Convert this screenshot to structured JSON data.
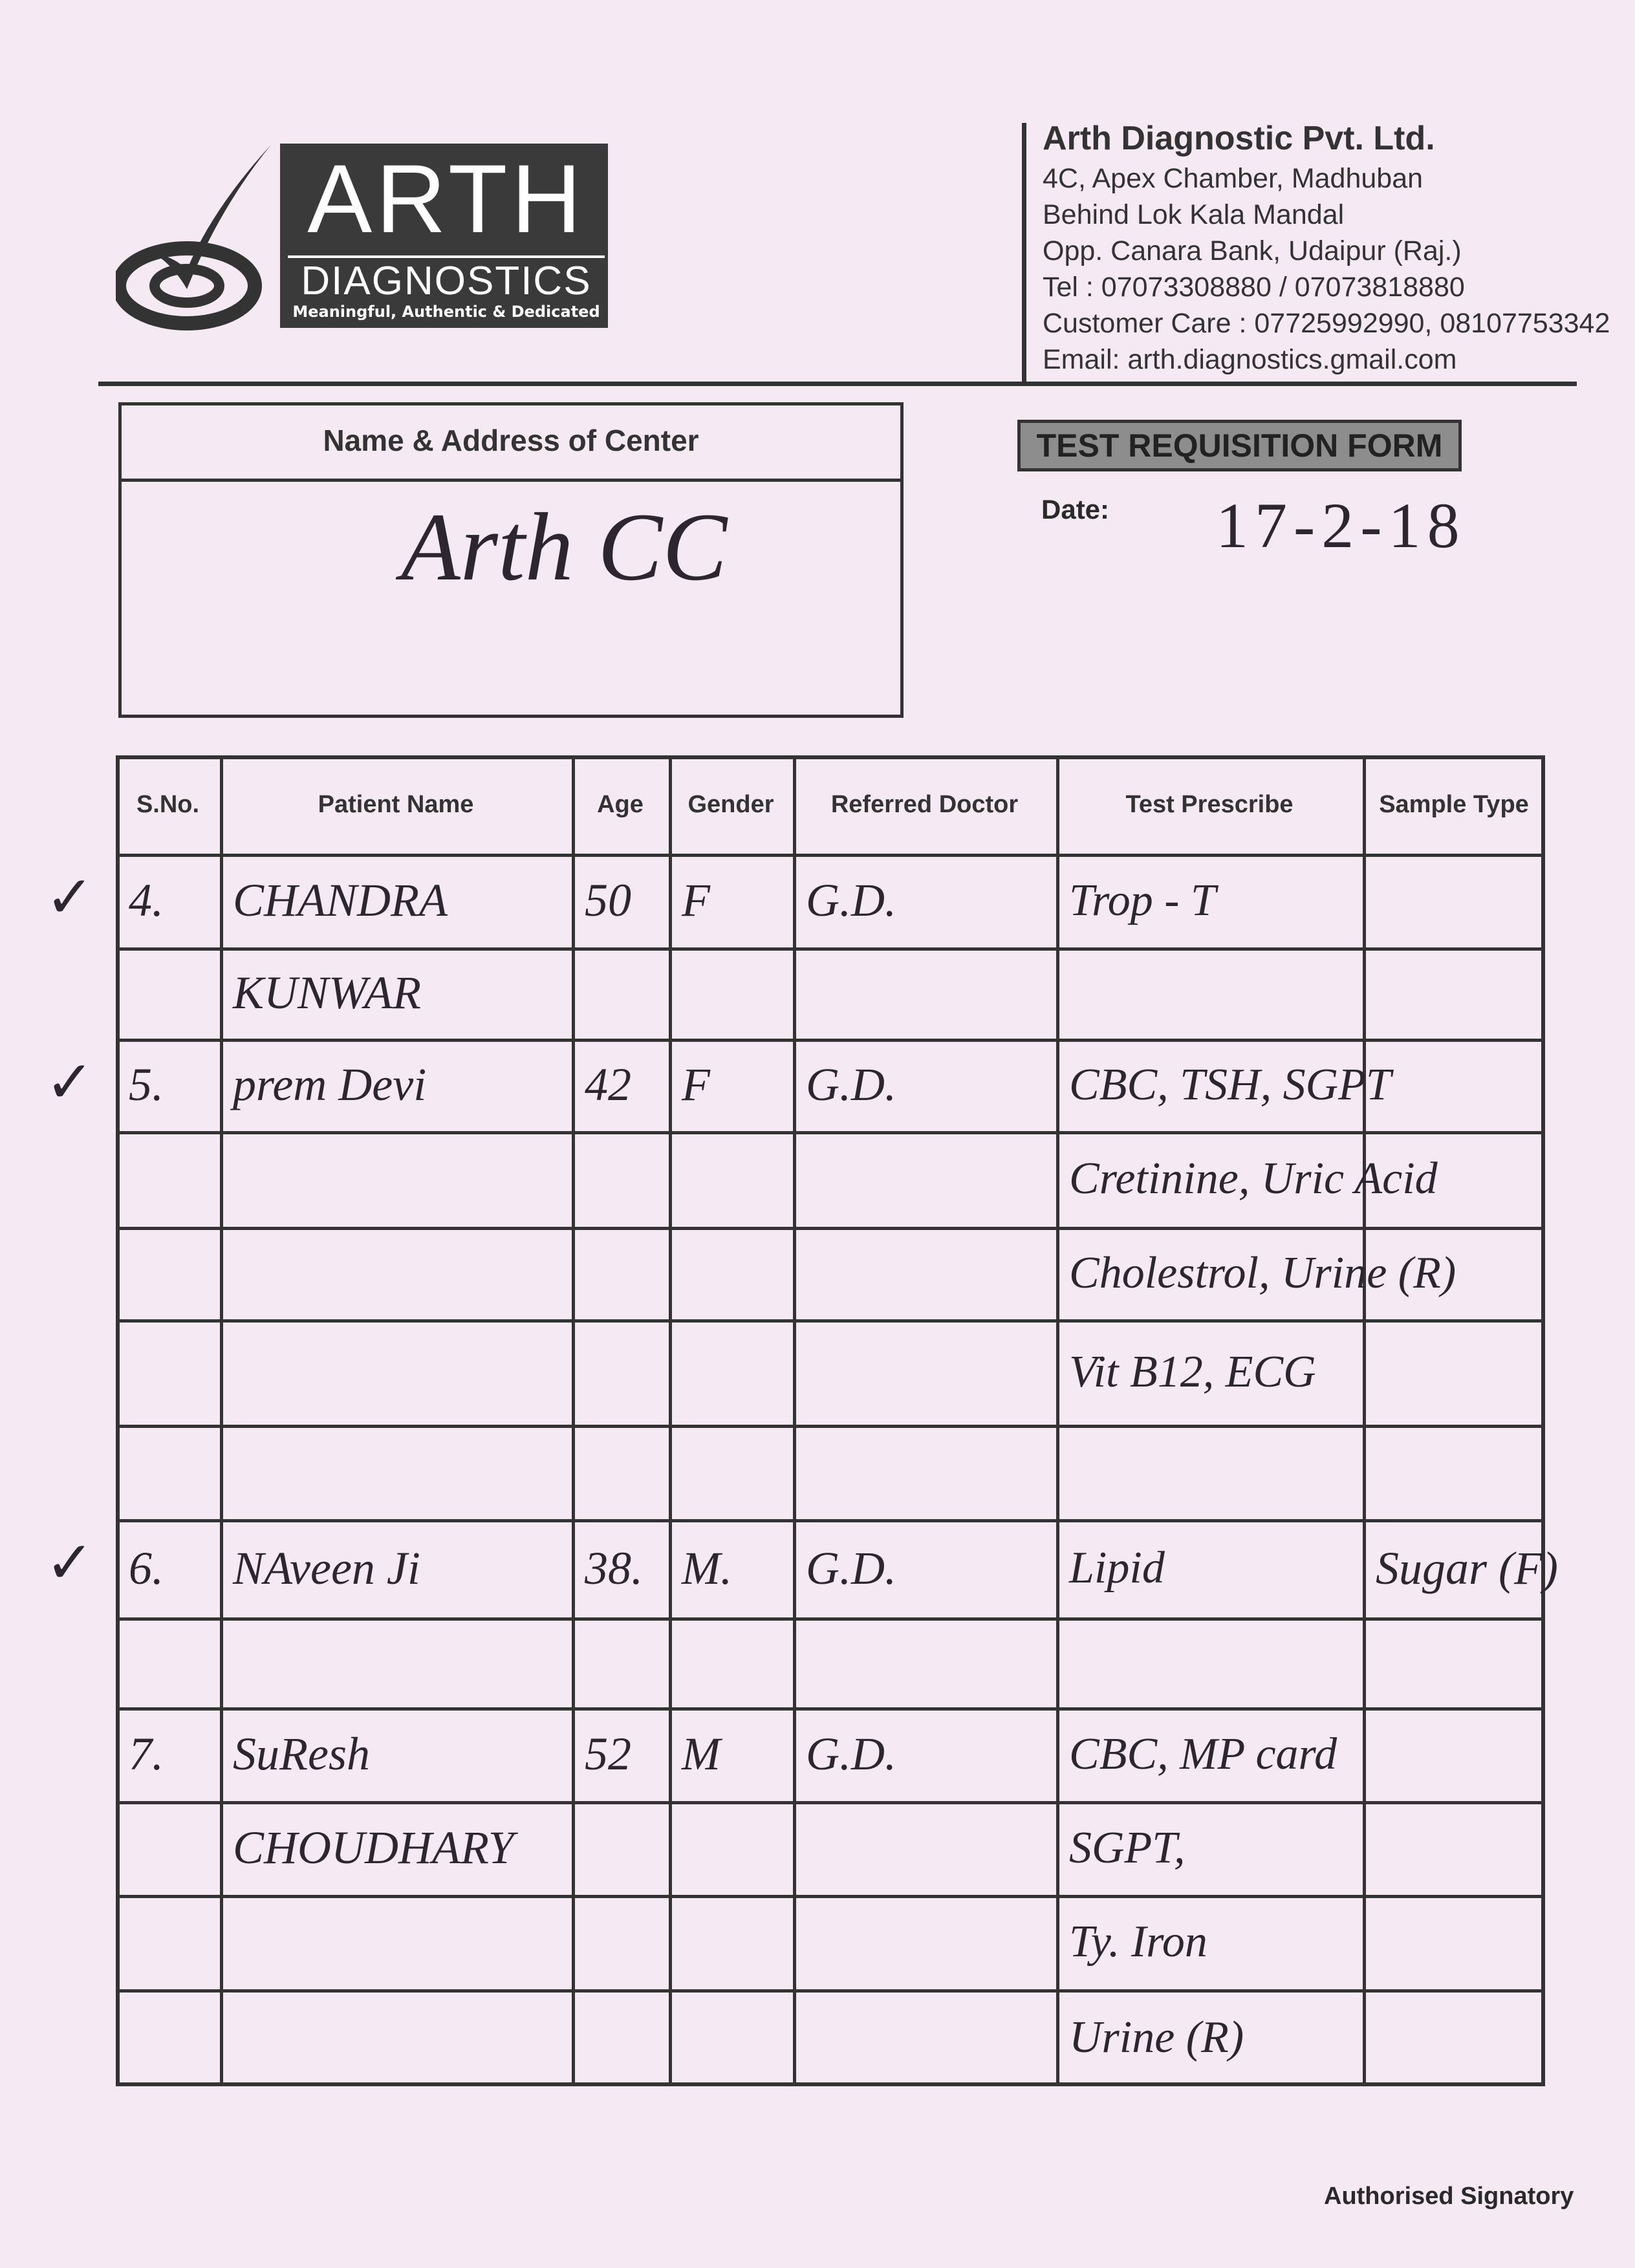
{
  "logo": {
    "name": "ARTH",
    "sub": "DIAGNOSTICS",
    "tagline": "Meaningful, Authentic & Dedicated"
  },
  "company": {
    "name": "Arth Diagnostic Pvt. Ltd.",
    "lines": [
      "4C, Apex Chamber, Madhuban",
      "Behind Lok Kala Mandal",
      "Opp. Canara Bank, Udaipur (Raj.)",
      "Tel : 07073308880 / 07073818880",
      "Customer Care : 07725992990, 08107753342",
      "Email: arth.diagnostics.gmail.com"
    ]
  },
  "center": {
    "label": "Name & Address of Center",
    "value": "Arth CC"
  },
  "form_title": "TEST REQUISITION FORM",
  "date": {
    "label": "Date:",
    "value": "17-2-18"
  },
  "table": {
    "headers": [
      "S.No.",
      "Patient Name",
      "Age",
      "Gender",
      "Referred Doctor",
      "Test Prescribe",
      "Sample Type"
    ],
    "rows": [
      [
        "4.",
        "CHANDRA",
        "50",
        "F",
        "G.D.",
        "Trop - T",
        ""
      ],
      [
        "",
        "KUNWAR",
        "",
        "",
        "",
        "",
        ""
      ],
      [
        "5.",
        "prem Devi",
        "42",
        "F",
        "G.D.",
        "CBC, TSH, SGPT",
        ""
      ],
      [
        "",
        "",
        "",
        "",
        "",
        "Cretinine, Uric Acid",
        ""
      ],
      [
        "",
        "",
        "",
        "",
        "",
        "Cholestrol, Urine (R)",
        ""
      ],
      [
        "",
        "",
        "",
        "",
        "",
        "Vit B12, ECG",
        ""
      ],
      [
        "",
        "",
        "",
        "",
        "",
        "",
        ""
      ],
      [
        "6.",
        "NAveen Ji",
        "38.",
        "M.",
        "G.D.",
        "Lipid",
        "Sugar (F)"
      ],
      [
        "",
        "",
        "",
        "",
        "",
        "",
        ""
      ],
      [
        "7.",
        "SuResh",
        "52",
        "M",
        "G.D.",
        "CBC, MP card",
        ""
      ],
      [
        "",
        "CHOUDHARY",
        "",
        "",
        "",
        "SGPT,",
        ""
      ],
      [
        "",
        "",
        "",
        "",
        "",
        "Ty. Iron",
        ""
      ],
      [
        "",
        "",
        "",
        "",
        "",
        "Urine (R)",
        ""
      ]
    ],
    "checked_rows": [
      0,
      2,
      7
    ]
  },
  "signatory": "Authorised Signatory"
}
